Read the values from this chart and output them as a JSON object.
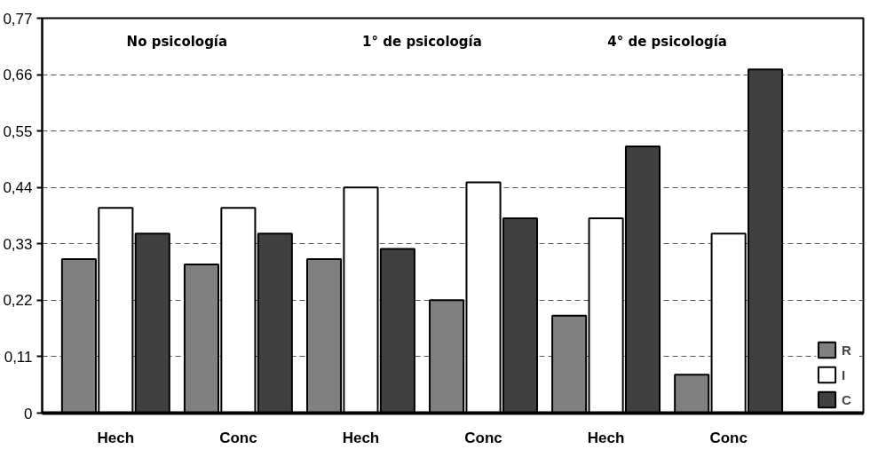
{
  "chart_data": {
    "type": "bar",
    "categories": [
      "Hech",
      "Conc",
      "Hech",
      "Conc",
      "Hech",
      "Conc"
    ],
    "series": [
      {
        "name": "R",
        "color": "#808080",
        "values": [
          0.3,
          0.29,
          0.3,
          0.22,
          0.19,
          0.075
        ]
      },
      {
        "name": "I",
        "color": "#ffffff",
        "values": [
          0.4,
          0.4,
          0.44,
          0.45,
          0.38,
          0.35
        ]
      },
      {
        "name": "C",
        "color": "#404040",
        "values": [
          0.35,
          0.35,
          0.32,
          0.38,
          0.52,
          0.67
        ]
      }
    ],
    "ylim": [
      0,
      0.77
    ],
    "yticks": [
      0,
      {
        "value": 0.11,
        "label": "0,11"
      },
      {
        "value": 0.22,
        "label": "0,22"
      },
      {
        "value": 0.33,
        "label": "0,33"
      },
      {
        "value": 0.44,
        "label": "0,44"
      },
      {
        "value": 0.55,
        "label": "0,55"
      },
      {
        "value": 0.66,
        "label": "0,66"
      },
      {
        "value": 0.77,
        "label": "0,77"
      }
    ],
    "annotations": [
      "No psicología",
      "1° de psicología",
      "4° de psicología"
    ],
    "grid": "y",
    "legend": "bottom right"
  }
}
